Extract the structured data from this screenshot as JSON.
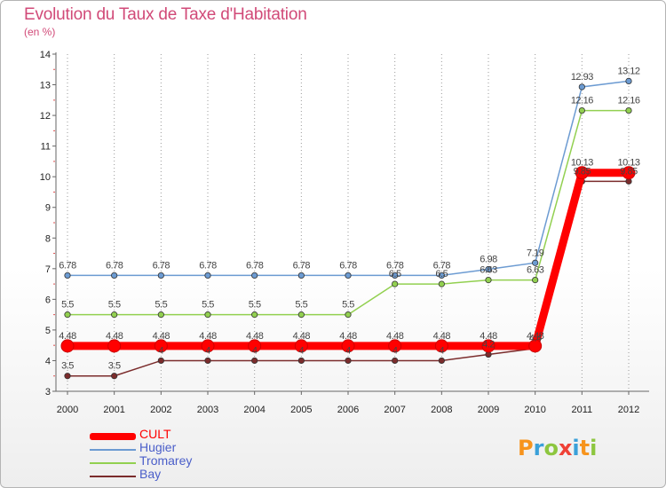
{
  "chart_data": {
    "type": "line",
    "title": "Evolution du Taux de Taxe d'Habitation",
    "subtitle": "(en %)",
    "categories": [
      "2000",
      "2001",
      "2002",
      "2003",
      "2004",
      "2005",
      "2006",
      "2007",
      "2008",
      "2009",
      "2010",
      "2011",
      "2012"
    ],
    "ylim": [
      3,
      14
    ],
    "yticks": [
      "3",
      "4",
      "5",
      "6",
      "7",
      "8",
      "9",
      "10",
      "11",
      "12",
      "13",
      "14"
    ],
    "grid": "vertical dotted",
    "legend_position": "bottom-left",
    "series": [
      {
        "name": "CULT",
        "color": "#ff0000",
        "values": [
          4.48,
          4.48,
          4.48,
          4.48,
          4.48,
          4.48,
          4.48,
          4.48,
          4.48,
          4.48,
          4.48,
          10.13,
          10.13
        ],
        "labels": [
          "4.48",
          "4.48",
          "4.48",
          "4.48",
          "4.48",
          "4.48",
          "4.48",
          "4.48",
          "4.48",
          "4.48",
          "4.48",
          "10.13",
          "10.13"
        ]
      },
      {
        "name": "Hugier",
        "color": "#6c9bd2",
        "values": [
          6.78,
          6.78,
          6.78,
          6.78,
          6.78,
          6.78,
          6.78,
          6.78,
          6.78,
          6.98,
          7.19,
          12.93,
          13.12
        ],
        "labels": [
          "6.78",
          "6.78",
          "6.78",
          "6.78",
          "6.78",
          "6.78",
          "6.78",
          "6.78",
          "6.78",
          "6.98",
          "7.19",
          "12.93",
          "13.12"
        ]
      },
      {
        "name": "Tromarey",
        "color": "#92d050",
        "values": [
          5.5,
          5.5,
          5.5,
          5.5,
          5.5,
          5.5,
          5.5,
          6.5,
          6.5,
          6.63,
          6.63,
          12.16,
          12.16
        ],
        "labels": [
          "5.5",
          "5.5",
          "5.5",
          "5.5",
          "5.5",
          "5.5",
          "5.5",
          "6.5",
          "6.5",
          "6.63",
          "6.63",
          "12.16",
          "12.16"
        ]
      },
      {
        "name": "Bay",
        "color": "#7b2c2c",
        "values": [
          3.5,
          3.5,
          4,
          4,
          4,
          4,
          4,
          4,
          4,
          4.2,
          4.4,
          9.85,
          9.85
        ],
        "labels": [
          "3.5",
          "3.5",
          "4",
          "4",
          "4",
          "4",
          "4",
          "4",
          "4",
          "4.2",
          "4.4",
          "9.85",
          "9.85"
        ]
      }
    ]
  },
  "legend": {
    "items": [
      {
        "name": "CULT",
        "color": "#ff0000",
        "text_color": "#ff0000"
      },
      {
        "name": "Hugier",
        "color": "#6c9bd2",
        "text_color": "#4a5ec9"
      },
      {
        "name": "Tromarey",
        "color": "#92d050",
        "text_color": "#4a5ec9"
      },
      {
        "name": "Bay",
        "color": "#7b2c2c",
        "text_color": "#4a5ec9"
      }
    ]
  },
  "logo": {
    "letters": [
      "P",
      "r",
      "o",
      "x",
      "i",
      "t",
      "i"
    ],
    "colors": [
      "#f7941d",
      "#3aa0d9",
      "#8dc63f",
      "#ef4136",
      "#3aa0d9",
      "#f7941d",
      "#8dc63f"
    ]
  }
}
